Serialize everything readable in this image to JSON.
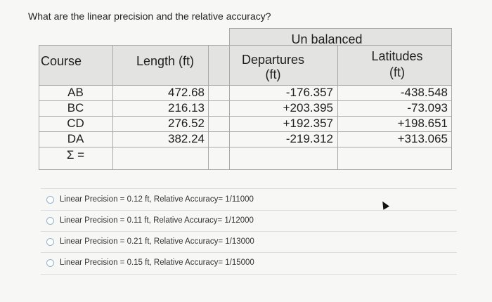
{
  "question": "What are the linear precision and the relative accuracy?",
  "table": {
    "super_header": "Un balanced",
    "headers": {
      "course": "Course",
      "length": "Length (ft)",
      "departures_line1": "Departures",
      "departures_line2": "(ft)",
      "latitudes_line1": "Latitudes",
      "latitudes_line2": "(ft)"
    },
    "rows": [
      {
        "course": "AB",
        "length": "472.68",
        "departure": "-176.357",
        "latitude": "-438.548"
      },
      {
        "course": "BC",
        "length": "216.13",
        "departure": "+203.395",
        "latitude": "-73.093"
      },
      {
        "course": "CD",
        "length": "276.52",
        "departure": "+192.357",
        "latitude": "+198.651"
      },
      {
        "course": "DA",
        "length": "382.24",
        "departure": "-219.312",
        "latitude": "+313.065"
      }
    ],
    "sum_label": "Σ ="
  },
  "options": [
    "Linear Precision = 0.12 ft, Relative Accuracy= 1/11000",
    "Linear Precision = 0.11 ft, Relative Accuracy= 1/12000",
    "Linear Precision = 0.21 ft, Relative Accuracy= 1/13000",
    "Linear Precision = 0.15 ft, Relative Accuracy= 1/15000"
  ]
}
